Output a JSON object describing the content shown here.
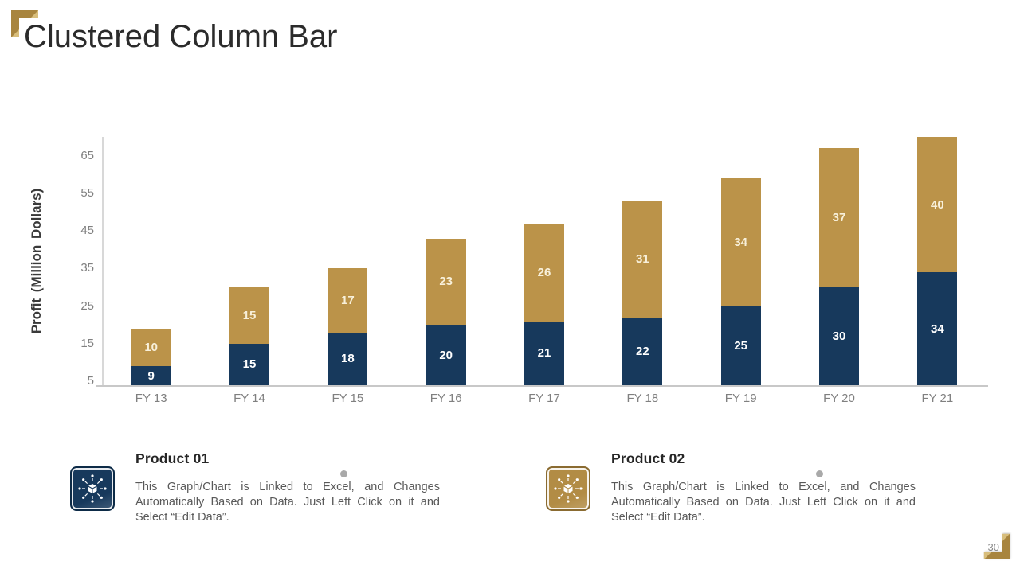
{
  "slide": {
    "title": "Clustered Column Bar",
    "page_number": "30"
  },
  "chart_data": {
    "type": "bar",
    "stacked": true,
    "categories": [
      "FY 13",
      "FY 14",
      "FY 15",
      "FY 16",
      "FY 17",
      "FY 18",
      "FY 19",
      "FY 20",
      "FY 21"
    ],
    "series": [
      {
        "name": "Product 01",
        "color": "#17395C",
        "label_color": "#FFFFFF",
        "values": [
          9,
          15,
          18,
          20,
          21,
          22,
          25,
          30,
          34
        ]
      },
      {
        "name": "Product 02",
        "color": "#BB9349",
        "label_color": "#F8F0DA",
        "values": [
          10,
          15,
          17,
          23,
          26,
          31,
          34,
          37,
          40
        ]
      }
    ],
    "xlabel": "",
    "ylabel": "Profit (Million Dollars)",
    "yticks": [
      5,
      15,
      25,
      35,
      45,
      55,
      65
    ],
    "axis_min": 4,
    "axis_max": 70,
    "grid": false,
    "legend_position": "none",
    "data_labels": "inside"
  },
  "cards": [
    {
      "title": "Product 01",
      "icon": "cube-network-icon",
      "accent": "#17395C",
      "border": "#0D2B47",
      "description": "This Graph/Chart is Linked to Excel, and Changes Automatically Based on Data. Just Left Click on it and Select “Edit Data”."
    },
    {
      "title": "Product 02",
      "icon": "cube-network-icon",
      "accent": "#B28C45",
      "border": "#8A6B31",
      "description": "This Graph/Chart is Linked to Excel, and Changes Automatically Based on Data. Just Left Click on it and Select “Edit Data”."
    }
  ],
  "decorations": {
    "corner_color": "#A8853F",
    "corner_bevel": "#D8BE7C"
  }
}
